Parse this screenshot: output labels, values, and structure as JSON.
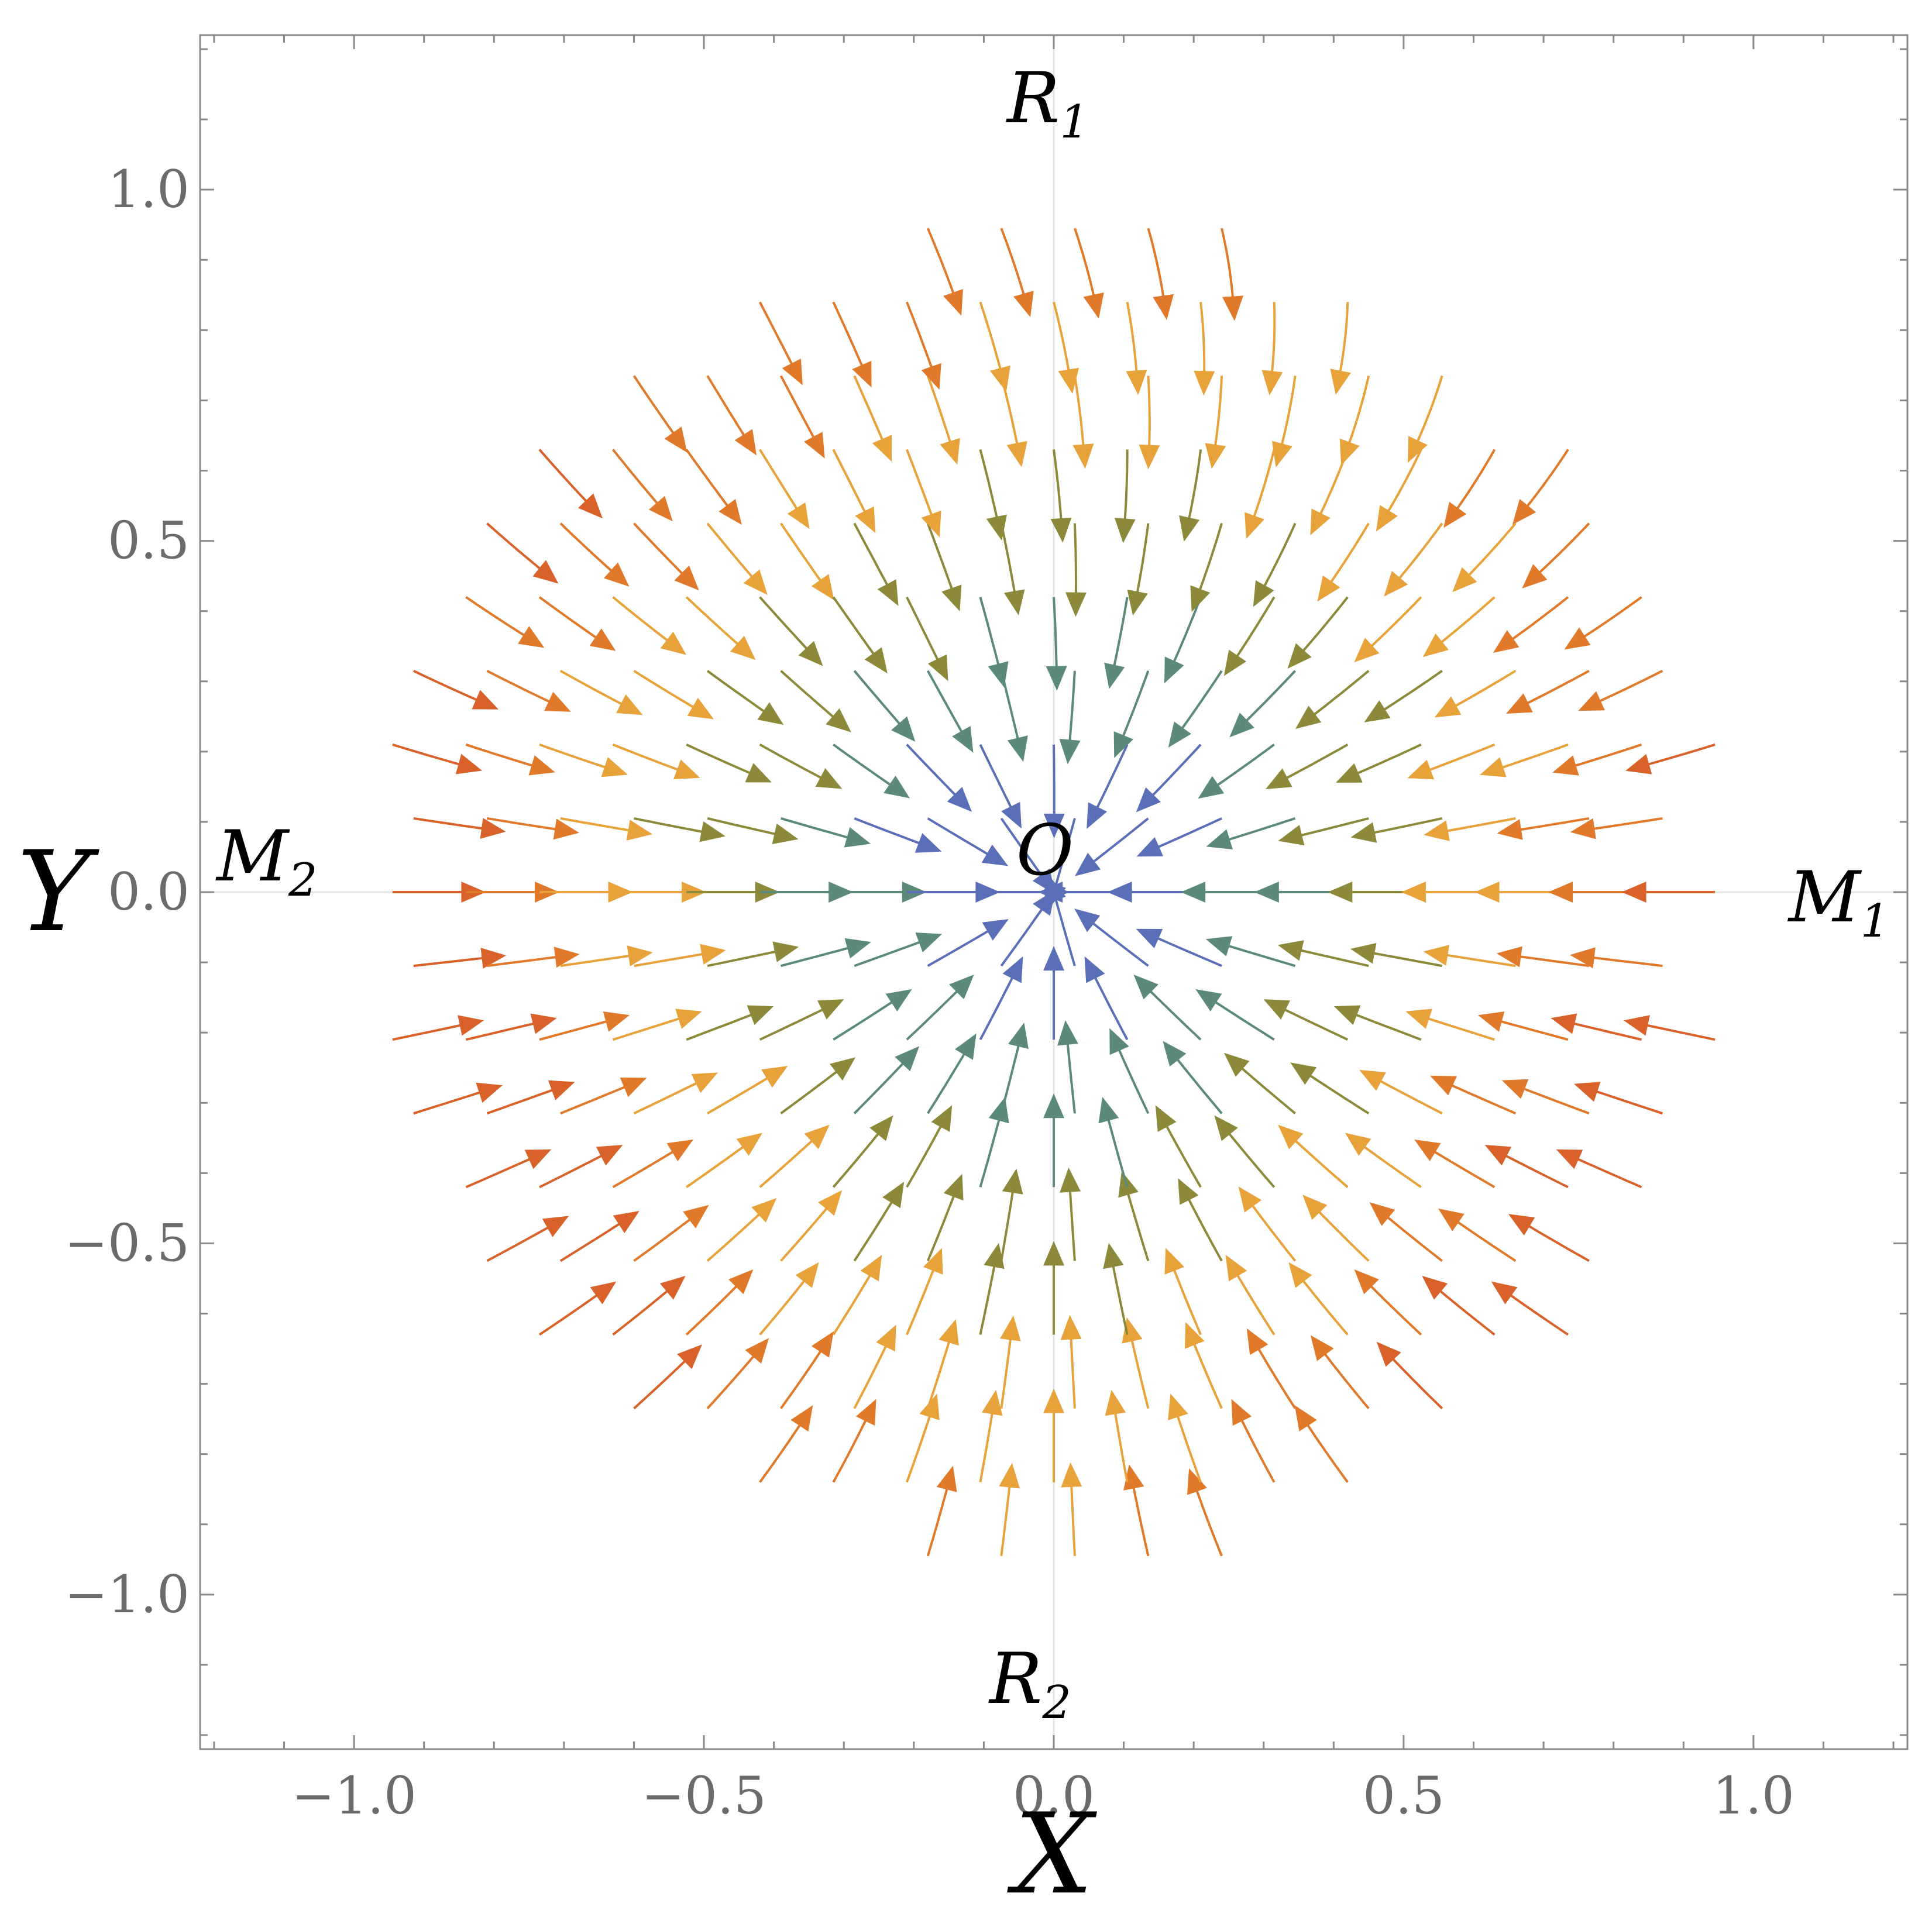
{
  "chart_data": {
    "type": "streamplot",
    "title": "",
    "xlabel": "X",
    "ylabel": "Y",
    "xlim": [
      -1.22,
      1.22
    ],
    "ylim": [
      -1.22,
      1.22
    ],
    "x_ticks": [
      -1.0,
      -0.5,
      0.0,
      0.5,
      1.0
    ],
    "y_ticks": [
      -1.0,
      -0.5,
      0.0,
      0.5,
      1.0
    ],
    "x_tick_labels": [
      "−1.0",
      "−0.5",
      "0.0",
      "0.5",
      "1.0"
    ],
    "y_tick_labels": [
      "−1.0",
      "−0.5",
      "0.0",
      "0.5",
      "1.0"
    ],
    "domain": "unit disk",
    "grid": false,
    "color_scale": [
      "#5a6fb8",
      "#5b8a7a",
      "#8c8a3a",
      "#e8a23a",
      "#e07a2a",
      "#d9622a"
    ],
    "critical_points": [
      {
        "label": "R",
        "subscript": "1",
        "x": 0.0,
        "y": 1.0
      },
      {
        "label": "R",
        "subscript": "2",
        "x": 0.0,
        "y": -1.0
      },
      {
        "label": "M",
        "subscript": "1",
        "x": 1.0,
        "y": 0.0
      },
      {
        "label": "M",
        "subscript": "2",
        "x": -1.0,
        "y": 0.0
      },
      {
        "label": "O",
        "subscript": "",
        "x": 0.0,
        "y": 0.0
      }
    ]
  }
}
